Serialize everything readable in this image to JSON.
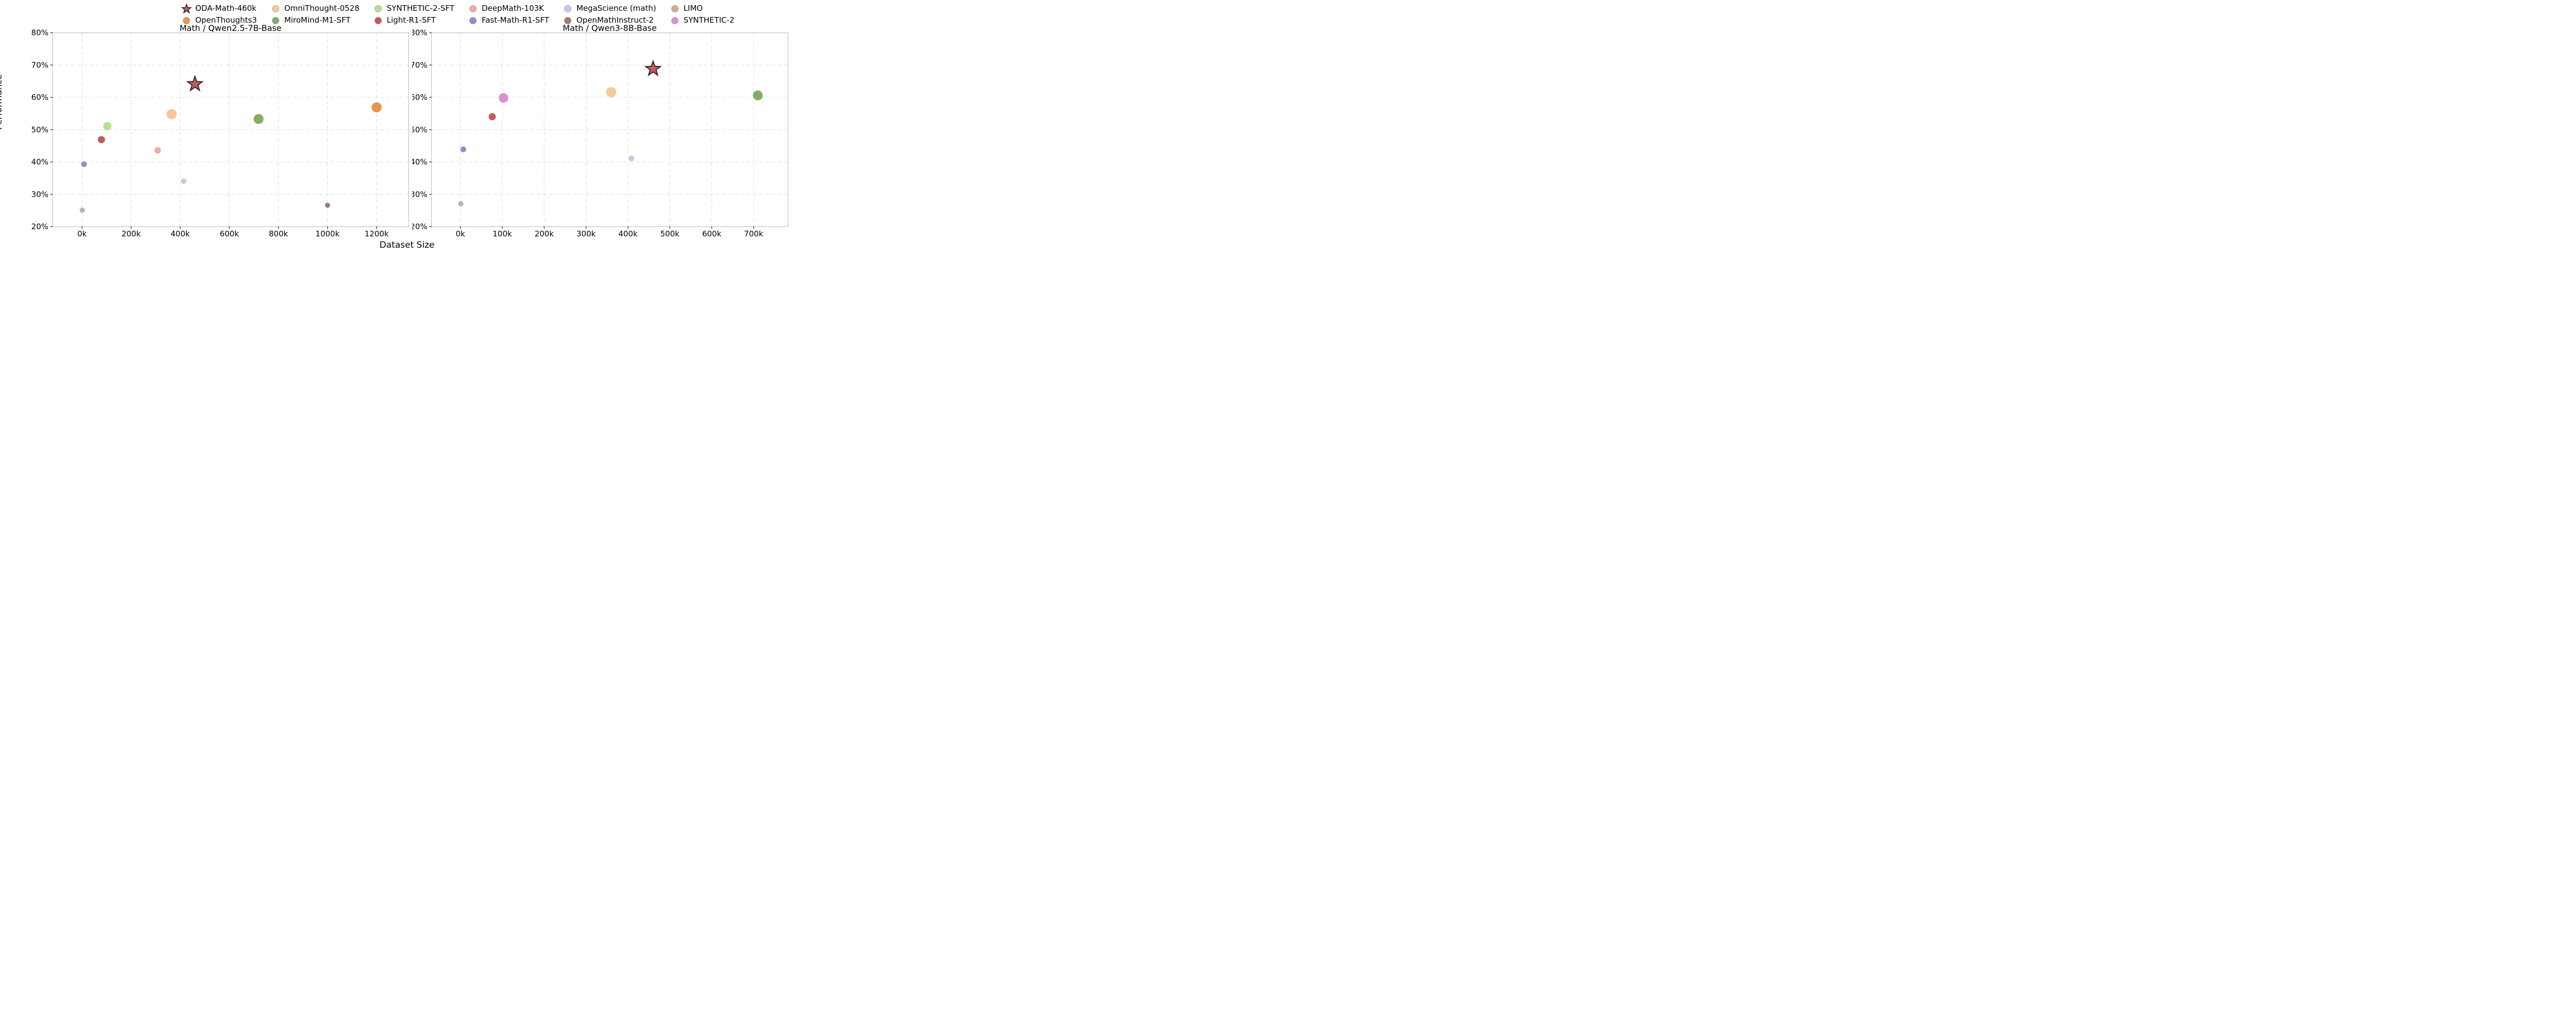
{
  "figure": {
    "xlabel": "Dataset Size",
    "ylabel": "Performance",
    "x_unit": "thousands of samples (k)",
    "background": "#ffffff"
  },
  "styles": {
    "grid_color": "#dcdcdc",
    "spine_color": "#c9c9c9",
    "tick_color": "#1a1a1a",
    "text_color": "#000000",
    "star_edge": "#382525"
  },
  "legend": {
    "items": [
      {
        "label": "ODA-Math-460k",
        "marker": "star",
        "color": "#bf5f5f"
      },
      {
        "label": "OpenThoughts3",
        "marker": "circle",
        "color": "#e8964f"
      },
      {
        "label": "OmniThought-0528",
        "marker": "circle",
        "color": "#f3ca96"
      },
      {
        "label": "MiroMind-M1-SFT",
        "marker": "circle",
        "color": "#84ad66"
      },
      {
        "label": "SYNTHETIC-2-SFT",
        "marker": "circle",
        "color": "#b7df92"
      },
      {
        "label": "Light-R1-SFT",
        "marker": "circle",
        "color": "#c45b5b"
      },
      {
        "label": "DeepMath-103K",
        "marker": "circle",
        "color": "#eeacaa"
      },
      {
        "label": "Fast-Math-R1-SFT",
        "marker": "circle",
        "color": "#9c89d0"
      },
      {
        "label": "MegaScience (math)",
        "marker": "circle",
        "color": "#ccc3e3"
      },
      {
        "label": "OpenMathInstruct-2",
        "marker": "circle",
        "color": "#9d7f73"
      },
      {
        "label": "LIMO",
        "marker": "circle",
        "color": "#c8af9f"
      },
      {
        "label": "SYNTHETIC-2",
        "marker": "circle",
        "color": "#d893cf"
      }
    ]
  },
  "chart_data": [
    {
      "type": "scatter",
      "title": "Math / Qwen2.5-7B-Base",
      "xlabel": "Dataset Size",
      "ylabel": "Performance",
      "xlim": [
        -120,
        1330
      ],
      "ylim": [
        20,
        80
      ],
      "grid": true,
      "xticks": [
        {
          "v": 0,
          "label": "0k"
        },
        {
          "v": 200,
          "label": "200k"
        },
        {
          "v": 400,
          "label": "400k"
        },
        {
          "v": 600,
          "label": "600k"
        },
        {
          "v": 800,
          "label": "800k"
        },
        {
          "v": 1000,
          "label": "1000k"
        },
        {
          "v": 1200,
          "label": "1200k"
        }
      ],
      "yticks": [
        {
          "v": 20,
          "label": "20%"
        },
        {
          "v": 30,
          "label": "30%"
        },
        {
          "v": 40,
          "label": "40%"
        },
        {
          "v": 50,
          "label": "50%"
        },
        {
          "v": 60,
          "label": "60%"
        },
        {
          "v": 70,
          "label": "70%"
        },
        {
          "v": 80,
          "label": "80%"
        }
      ],
      "points": [
        {
          "name": "LIMO",
          "x": 1,
          "y": 25.1,
          "r": 5.0,
          "marker": "circle",
          "color": "#c8af9f"
        },
        {
          "name": "Fast-Math-R1-SFT",
          "x": 8,
          "y": 39.3,
          "r": 5.6,
          "marker": "circle",
          "color": "#9c89d0"
        },
        {
          "name": "Light-R1-SFT",
          "x": 79,
          "y": 46.9,
          "r": 7.0,
          "marker": "circle",
          "color": "#c45b5b"
        },
        {
          "name": "SYNTHETIC-2-SFT",
          "x": 103,
          "y": 51.1,
          "r": 8.0,
          "marker": "circle",
          "color": "#b7df92"
        },
        {
          "name": "DeepMath-103K",
          "x": 308,
          "y": 43.6,
          "r": 6.3,
          "marker": "circle",
          "color": "#eeacaa"
        },
        {
          "name": "OmniThought-0528",
          "x": 365,
          "y": 54.8,
          "r": 9.9,
          "marker": "circle",
          "color": "#f3ca96"
        },
        {
          "name": "MegaScience (math)",
          "x": 414,
          "y": 34.1,
          "r": 5.3,
          "marker": "circle",
          "color": "#ccc3e3"
        },
        {
          "name": "MiroMind-M1-SFT",
          "x": 719,
          "y": 53.3,
          "r": 9.6,
          "marker": "circle",
          "color": "#84ad66"
        },
        {
          "name": "OpenMathInstruct-2",
          "x": 1000,
          "y": 26.6,
          "r": 5.0,
          "marker": "circle",
          "color": "#9d7f73"
        },
        {
          "name": "OpenThoughts3",
          "x": 1200,
          "y": 56.9,
          "r": 9.8,
          "marker": "circle",
          "color": "#e8964f"
        },
        {
          "name": "ODA-Math-460k",
          "x": 460,
          "y": 64.1,
          "r": 15.0,
          "marker": "star",
          "color": "#bf5f5f"
        }
      ]
    },
    {
      "type": "scatter",
      "title": "Math / Qwen3-8B-Base",
      "xlabel": "Dataset Size",
      "ylabel": "Performance",
      "xlim": [
        -69,
        782
      ],
      "ylim": [
        20,
        80
      ],
      "grid": true,
      "xticks": [
        {
          "v": 0,
          "label": "0k"
        },
        {
          "v": 100,
          "label": "100k"
        },
        {
          "v": 200,
          "label": "200k"
        },
        {
          "v": 300,
          "label": "300k"
        },
        {
          "v": 400,
          "label": "400k"
        },
        {
          "v": 500,
          "label": "500k"
        },
        {
          "v": 600,
          "label": "600k"
        },
        {
          "v": 700,
          "label": "700k"
        }
      ],
      "yticks": [
        {
          "v": 20,
          "label": "20%"
        },
        {
          "v": 30,
          "label": "30%"
        },
        {
          "v": 40,
          "label": "40%"
        },
        {
          "v": 50,
          "label": "50%"
        },
        {
          "v": 60,
          "label": "60%"
        },
        {
          "v": 70,
          "label": "70%"
        },
        {
          "v": 80,
          "label": "80%"
        }
      ],
      "points": [
        {
          "name": "LIMO",
          "x": 1,
          "y": 27.1,
          "r": 5.0,
          "marker": "circle",
          "color": "#c8af9f"
        },
        {
          "name": "Fast-Math-R1-SFT",
          "x": 7,
          "y": 43.9,
          "r": 5.6,
          "marker": "circle",
          "color": "#9c89d0"
        },
        {
          "name": "Light-R1-SFT",
          "x": 76,
          "y": 54.0,
          "r": 7.0,
          "marker": "circle",
          "color": "#c45b5b"
        },
        {
          "name": "SYNTHETIC-2",
          "x": 103,
          "y": 59.8,
          "r": 9.3,
          "marker": "circle",
          "color": "#d893cf"
        },
        {
          "name": "OmniThought-0528",
          "x": 360,
          "y": 61.6,
          "r": 9.9,
          "marker": "circle",
          "color": "#f3ca96"
        },
        {
          "name": "MegaScience (math)",
          "x": 408,
          "y": 41.1,
          "r": 5.3,
          "marker": "circle",
          "color": "#ccc3e3"
        },
        {
          "name": "MiroMind-M1-SFT",
          "x": 710,
          "y": 60.6,
          "r": 9.6,
          "marker": "circle",
          "color": "#84ad66"
        },
        {
          "name": "ODA-Math-460k",
          "x": 460,
          "y": 68.8,
          "r": 15.0,
          "marker": "star",
          "color": "#bf5f5f"
        }
      ]
    }
  ]
}
